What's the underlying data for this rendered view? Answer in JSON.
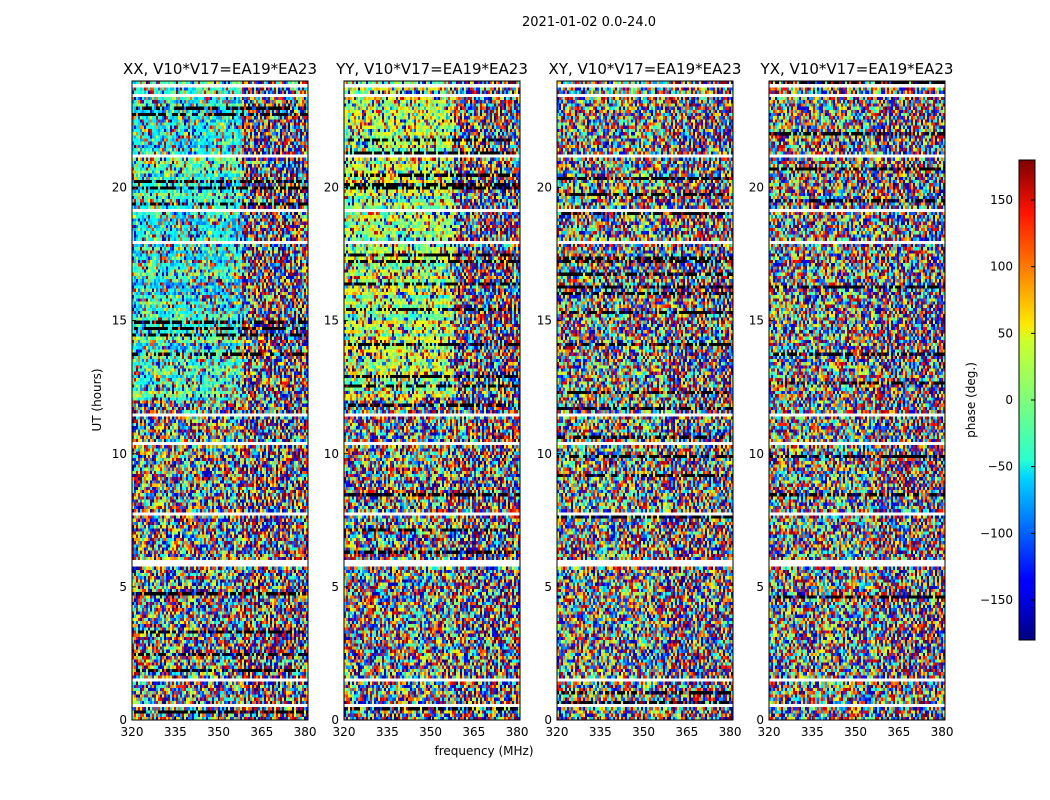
{
  "figure": {
    "suptitle": "2021-01-02 0.0-24.0",
    "xlabel": "frequency (MHz)",
    "ylabel": "UT (hours)"
  },
  "chart_data": {
    "type": "heatmap",
    "subplots": [
      {
        "title": "XX, V10*V17=EA19*EA23",
        "pol": "XX"
      },
      {
        "title": "YY, V10*V17=EA19*EA23",
        "pol": "YY"
      },
      {
        "title": "XY, V10*V17=EA19*EA23",
        "pol": "XY"
      },
      {
        "title": "YX, V10*V17=EA19*EA23",
        "pol": "YX"
      }
    ],
    "x": {
      "label": "frequency (MHz)",
      "range": [
        320,
        381
      ],
      "ticks": [
        320,
        335,
        350,
        365,
        380
      ],
      "tick_labels": [
        "320",
        "335",
        "350",
        "365",
        "380"
      ]
    },
    "y": {
      "label": "UT (hours)",
      "range": [
        0,
        24
      ],
      "ticks": [
        0,
        5,
        10,
        15,
        20
      ],
      "tick_labels": [
        "0",
        "5",
        "10",
        "15",
        "20"
      ]
    },
    "colorbar": {
      "label": "phase (deg.)",
      "range": [
        -180,
        180
      ],
      "colormap": "jet",
      "ticks": [
        150,
        100,
        50,
        0,
        -50,
        -100,
        -150
      ],
      "tick_labels": [
        "150",
        "100",
        "50",
        "0",
        "−50",
        "−100",
        "−150"
      ]
    },
    "flagged_time_ranges_hours": [
      [
        0.45,
        0.55
      ],
      [
        1.45,
        1.55
      ],
      [
        2.95,
        3.05
      ],
      [
        5.8,
        5.95
      ],
      [
        7.65,
        7.8
      ],
      [
        10.35,
        10.45
      ],
      [
        11.45,
        11.55
      ],
      [
        17.85,
        18.0
      ],
      [
        19.05,
        19.15
      ],
      [
        21.15,
        21.25
      ],
      [
        23.35,
        23.5
      ],
      [
        23.75,
        23.9
      ]
    ]
  }
}
